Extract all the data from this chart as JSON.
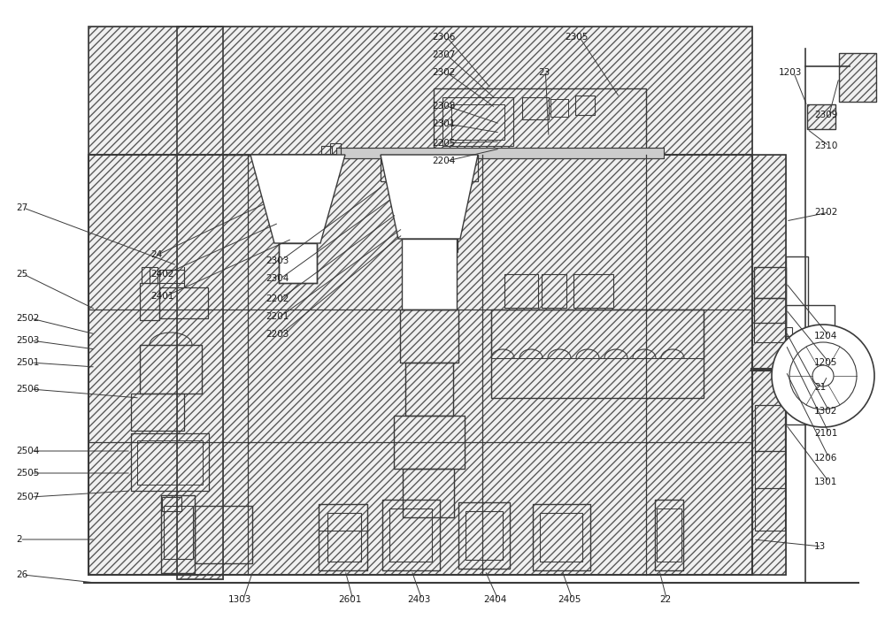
{
  "bg_color": "#ffffff",
  "line_color": "#3a3a3a",
  "fig_width": 10.0,
  "fig_height": 7.09
}
